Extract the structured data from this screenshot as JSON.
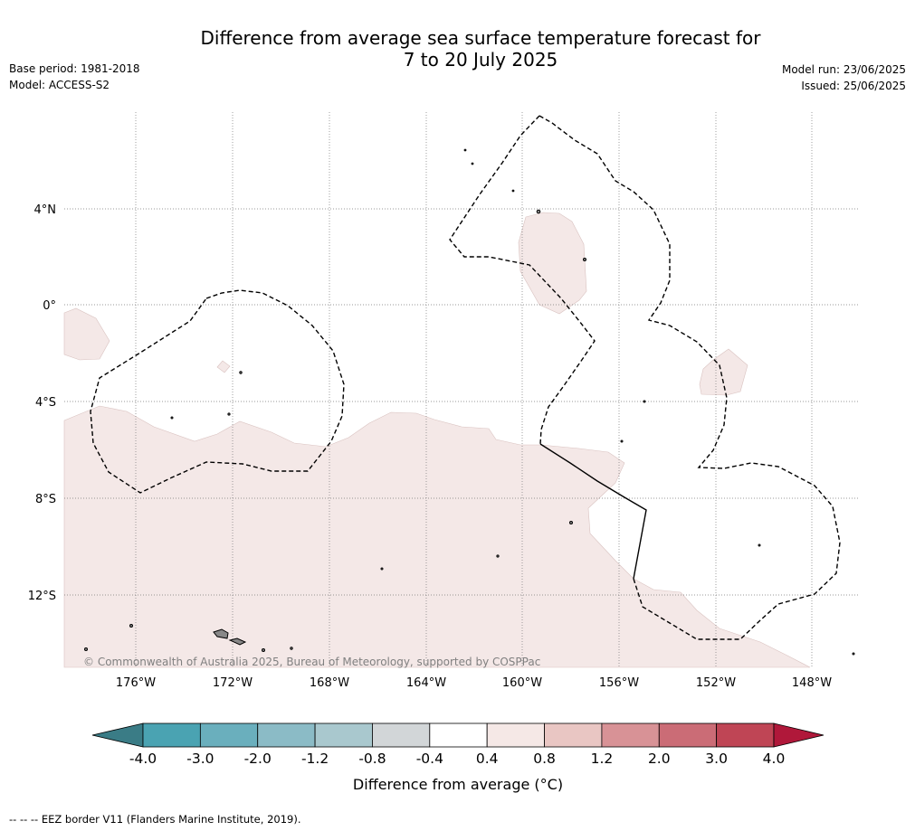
{
  "title_line1": "Difference from average sea surface temperature forecast for",
  "title_line2": "7 to 20 July 2025",
  "meta": {
    "base_period": "Base period: 1981-2018",
    "model": "Model: ACCESS-S2",
    "model_run": "Model run: 23/06/2025",
    "issued": "Issued: 25/06/2025"
  },
  "map": {
    "longitude_labels": [
      "176°W",
      "172°W",
      "168°W",
      "164°W",
      "160°W",
      "156°W",
      "152°W",
      "148°W"
    ],
    "latitude_labels": [
      "4°N",
      "0°",
      "4°S",
      "8°S",
      "12°S"
    ],
    "copyright": "© Commonwealth of Australia 2025, Bureau of Meteorology, supported by COSPPac",
    "anomaly_fill_color": "#f4e8e7",
    "ocean_color": "#ffffff"
  },
  "colorbar": {
    "tick_labels": [
      "-4.0",
      "-3.0",
      "-2.0",
      "-1.2",
      "-0.8",
      "-0.4",
      "0.4",
      "0.8",
      "1.2",
      "2.0",
      "3.0",
      "4.0"
    ],
    "colors": [
      "#4aa3b2",
      "#6aafbd",
      "#8bbbc6",
      "#a9c8ce",
      "#d2d6d8",
      "#ffffff",
      "#f5e8e6",
      "#e9c6c3",
      "#d89296",
      "#cb6c76",
      "#bf4555"
    ],
    "under_color": "#3a7c86",
    "over_color": "#b0183a",
    "label": "Difference from average (°C)"
  },
  "footer": "-- -- -- EEZ border V11 (Flanders Marine Institute, 2019)."
}
